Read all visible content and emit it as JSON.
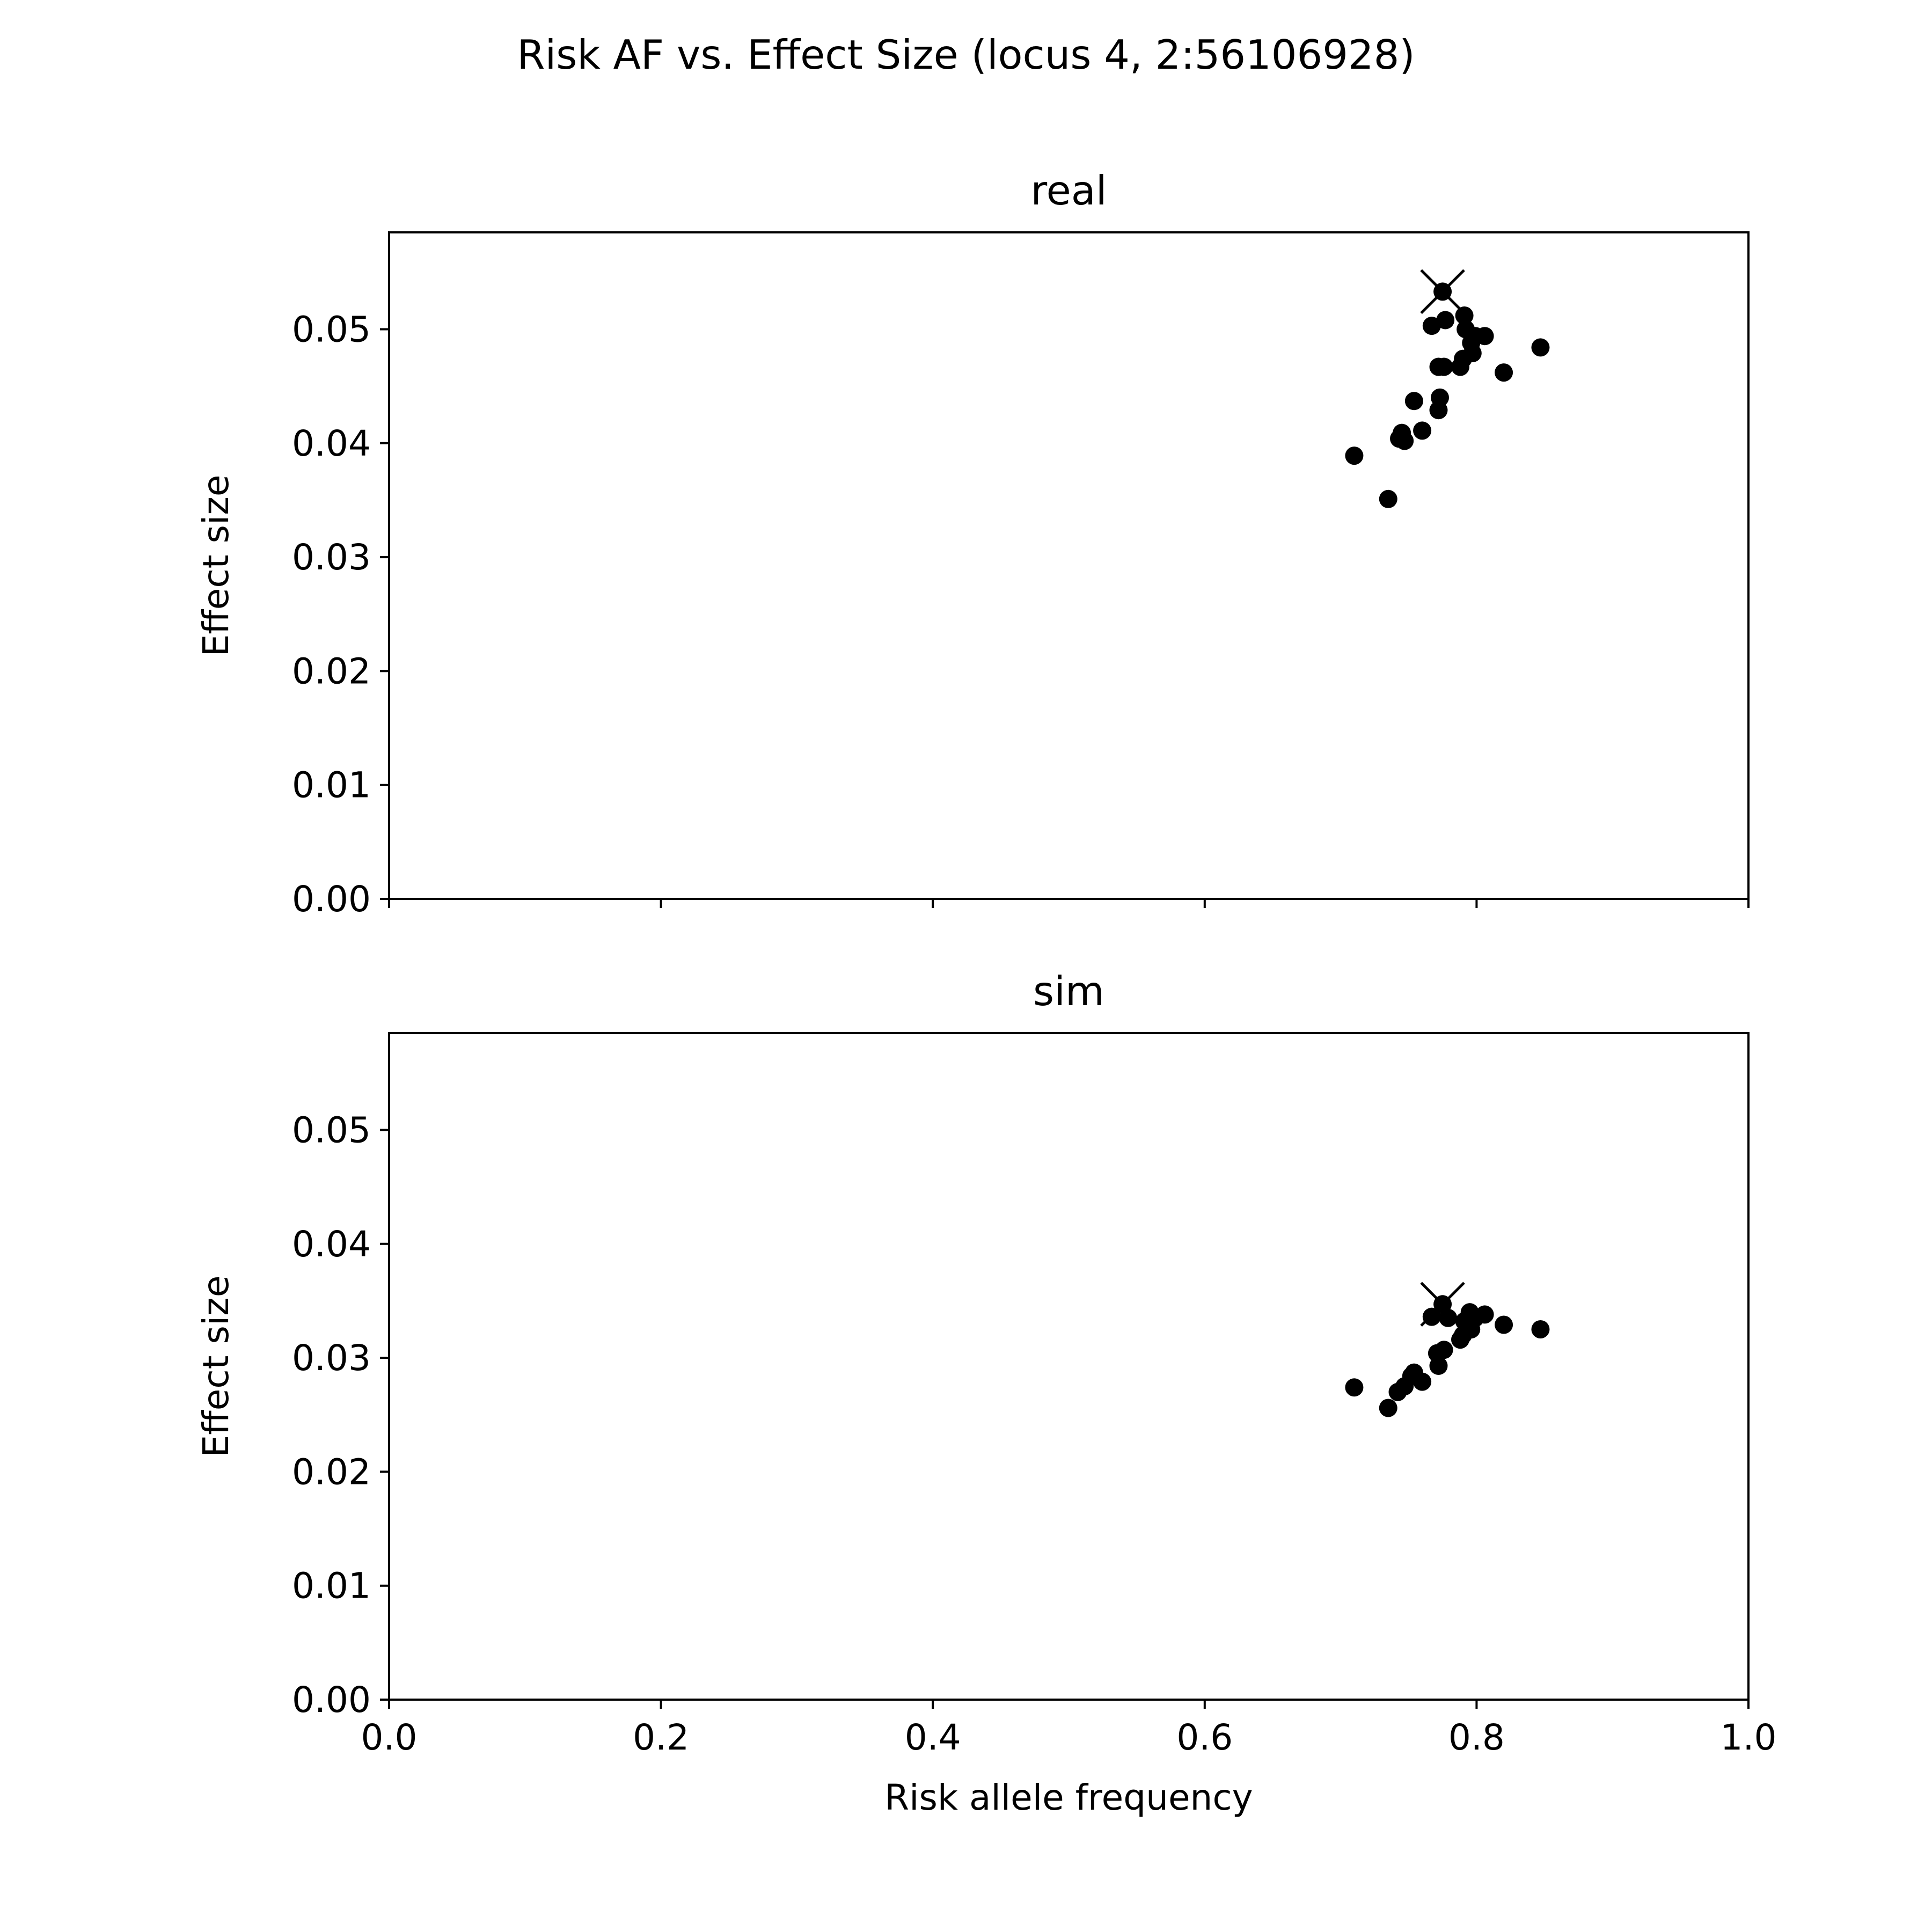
{
  "figure": {
    "suptitle": "Risk AF vs. Effect Size (locus 4, 2:56106928)",
    "xlabel": "Risk allele frequency",
    "colors": {
      "marker": "#000000",
      "axes": "#000000",
      "background": "#ffffff"
    }
  },
  "chart_data": [
    {
      "type": "scatter",
      "title": "real",
      "xlabel": "",
      "ylabel": "Effect size",
      "xlim": [
        0.0,
        1.0
      ],
      "ylim": [
        0.0,
        0.0585
      ],
      "xticks": [
        0.0,
        0.2,
        0.4,
        0.6,
        0.8,
        1.0
      ],
      "xtick_labels": [
        "",
        "",
        "",
        "",
        "",
        ""
      ],
      "yticks": [
        0.0,
        0.01,
        0.02,
        0.03,
        0.04,
        0.05
      ],
      "ytick_labels": [
        "0.00",
        "0.01",
        "0.02",
        "0.03",
        "0.04",
        "0.05"
      ],
      "grid": false,
      "lead_variant": {
        "x": 0.775,
        "y": 0.0533,
        "marker": "x"
      },
      "points": [
        {
          "x": 0.775,
          "y": 0.0533
        },
        {
          "x": 0.791,
          "y": 0.0512
        },
        {
          "x": 0.777,
          "y": 0.0508
        },
        {
          "x": 0.767,
          "y": 0.0503
        },
        {
          "x": 0.792,
          "y": 0.05
        },
        {
          "x": 0.799,
          "y": 0.0494
        },
        {
          "x": 0.806,
          "y": 0.0494
        },
        {
          "x": 0.796,
          "y": 0.0488
        },
        {
          "x": 0.847,
          "y": 0.0484
        },
        {
          "x": 0.797,
          "y": 0.0479
        },
        {
          "x": 0.79,
          "y": 0.0474
        },
        {
          "x": 0.772,
          "y": 0.0467
        },
        {
          "x": 0.776,
          "y": 0.0467
        },
        {
          "x": 0.788,
          "y": 0.0467
        },
        {
          "x": 0.82,
          "y": 0.0462
        },
        {
          "x": 0.773,
          "y": 0.044
        },
        {
          "x": 0.754,
          "y": 0.0437
        },
        {
          "x": 0.772,
          "y": 0.0429
        },
        {
          "x": 0.76,
          "y": 0.0411
        },
        {
          "x": 0.745,
          "y": 0.0409
        },
        {
          "x": 0.743,
          "y": 0.0404
        },
        {
          "x": 0.747,
          "y": 0.0402
        },
        {
          "x": 0.71,
          "y": 0.0389
        },
        {
          "x": 0.735,
          "y": 0.0351
        }
      ]
    },
    {
      "type": "scatter",
      "title": "sim",
      "xlabel": "Risk allele frequency",
      "ylabel": "Effect size",
      "xlim": [
        0.0,
        1.0
      ],
      "ylim": [
        0.0,
        0.0585
      ],
      "xticks": [
        0.0,
        0.2,
        0.4,
        0.6,
        0.8,
        1.0
      ],
      "xtick_labels": [
        "0.0",
        "0.2",
        "0.4",
        "0.6",
        "0.8",
        "1.0"
      ],
      "yticks": [
        0.0,
        0.01,
        0.02,
        0.03,
        0.04,
        0.05
      ],
      "ytick_labels": [
        "0.00",
        "0.01",
        "0.02",
        "0.03",
        "0.04",
        "0.05"
      ],
      "grid": false,
      "lead_variant": {
        "x": 0.775,
        "y": 0.0347,
        "marker": "x"
      },
      "points": [
        {
          "x": 0.775,
          "y": 0.0347
        },
        {
          "x": 0.767,
          "y": 0.0336
        },
        {
          "x": 0.779,
          "y": 0.0335
        },
        {
          "x": 0.795,
          "y": 0.034
        },
        {
          "x": 0.806,
          "y": 0.0338
        },
        {
          "x": 0.799,
          "y": 0.0335
        },
        {
          "x": 0.791,
          "y": 0.0332
        },
        {
          "x": 0.82,
          "y": 0.0329
        },
        {
          "x": 0.847,
          "y": 0.0325
        },
        {
          "x": 0.796,
          "y": 0.0325
        },
        {
          "x": 0.79,
          "y": 0.032
        },
        {
          "x": 0.788,
          "y": 0.0316
        },
        {
          "x": 0.776,
          "y": 0.0307
        },
        {
          "x": 0.771,
          "y": 0.0304
        },
        {
          "x": 0.772,
          "y": 0.0293
        },
        {
          "x": 0.754,
          "y": 0.0287
        },
        {
          "x": 0.752,
          "y": 0.0284
        },
        {
          "x": 0.76,
          "y": 0.0279
        },
        {
          "x": 0.747,
          "y": 0.0275
        },
        {
          "x": 0.742,
          "y": 0.027
        },
        {
          "x": 0.71,
          "y": 0.0274
        },
        {
          "x": 0.735,
          "y": 0.0256
        }
      ]
    }
  ]
}
